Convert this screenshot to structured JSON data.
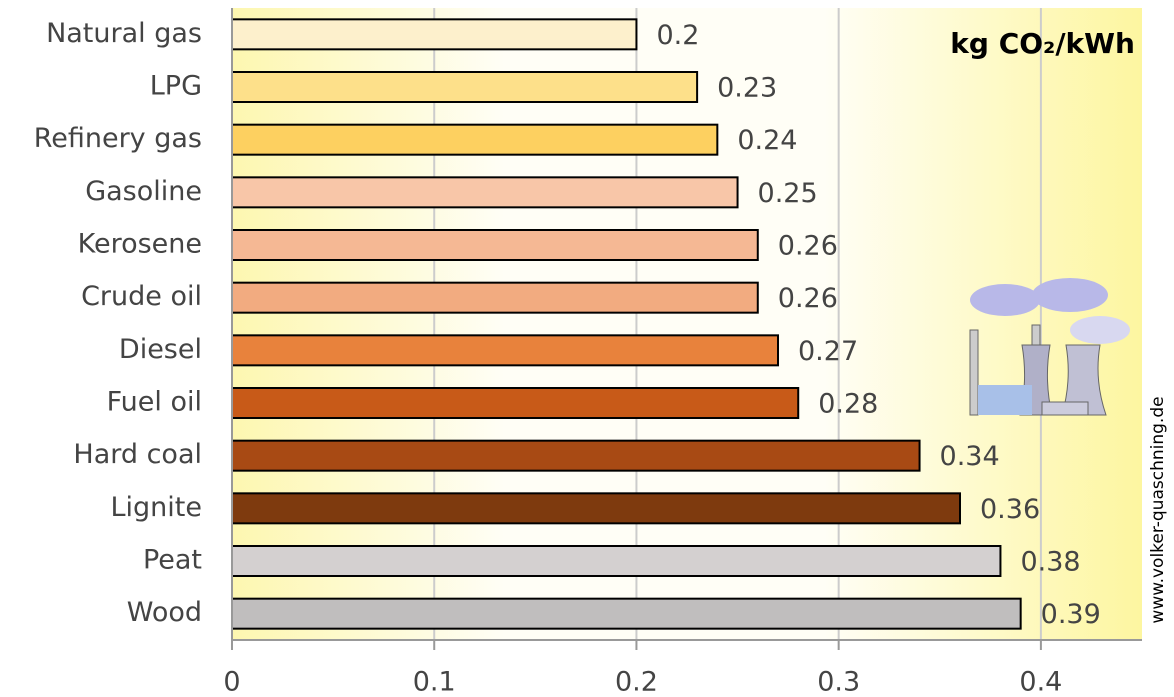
{
  "chart_data": {
    "type": "barh",
    "title": "kg CO₂/kWh",
    "watermark": "www.volker-quaschning.de",
    "categories": [
      "Natural gas",
      "LPG",
      "Refinery gas",
      "Gasoline",
      "Kerosene",
      "Crude oil",
      "Diesel",
      "Fuel oil",
      "Hard coal",
      "Lignite",
      "Peat",
      "Wood"
    ],
    "values": [
      0.2,
      0.23,
      0.24,
      0.25,
      0.26,
      0.26,
      0.27,
      0.28,
      0.34,
      0.36,
      0.38,
      0.39
    ],
    "colors": [
      "#fdf0cc",
      "#fde08a",
      "#fdd060",
      "#f8c6a8",
      "#f5b894",
      "#f2ab80",
      "#e8823c",
      "#c85a18",
      "#a84a14",
      "#7e3a0e",
      "#d4d0d0",
      "#c0bebe"
    ],
    "xlim": [
      0,
      0.45
    ],
    "xticks": [
      0,
      0.1,
      0.2,
      0.3,
      0.4
    ],
    "grid": true
  }
}
